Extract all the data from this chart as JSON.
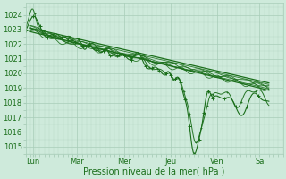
{
  "xlabel": "Pression niveau de la mer( hPa )",
  "ylim": [
    1014.5,
    1024.8
  ],
  "xlim": [
    0,
    5.5
  ],
  "yticks": [
    1015,
    1016,
    1017,
    1018,
    1019,
    1020,
    1021,
    1022,
    1023,
    1024
  ],
  "day_labels": [
    "Lun",
    "Mar",
    "Mer",
    "Jeu",
    "Ven",
    "Sa"
  ],
  "day_positions": [
    0.15,
    1.1,
    2.1,
    3.1,
    4.1,
    5.0
  ],
  "background_color": "#ceeadb",
  "grid_color": "#a8cdb8",
  "plot_color": "#1a6e1a",
  "vline_positions": [
    0.15,
    1.1,
    2.1,
    3.1,
    4.1,
    5.0
  ]
}
